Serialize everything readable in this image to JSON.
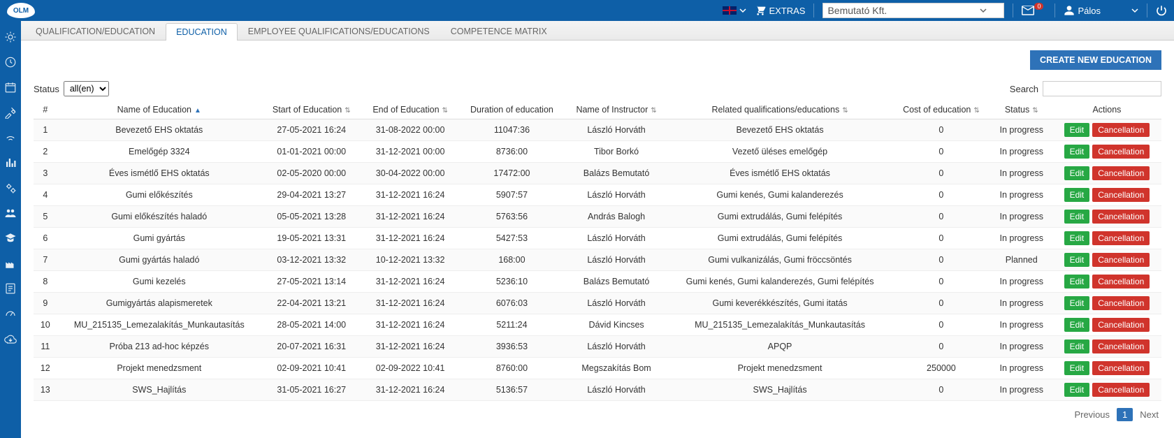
{
  "colors": {
    "primary_blue": "#0e5fa7",
    "green": "#27a844",
    "red": "#d0342c",
    "btn_blue": "#2e72b8"
  },
  "header": {
    "logo_text": "OLM",
    "extras_label": "EXTRAS",
    "company_name": "Bemutató Kft.",
    "mail_badge": "0",
    "user_name": "Pálos"
  },
  "tabs": {
    "items": [
      {
        "label": "QUALIFICATION/EDUCATION",
        "active": false
      },
      {
        "label": "EDUCATION",
        "active": true
      },
      {
        "label": "EMPLOYEE QUALIFICATIONS/EDUCATIONS",
        "active": false
      },
      {
        "label": "COMPETENCE MATRIX",
        "active": false
      }
    ]
  },
  "buttons": {
    "create_new": "CREATE NEW EDUCATION",
    "edit": "Edit",
    "cancel": "Cancellation"
  },
  "filter": {
    "status_label": "Status",
    "status_value": "all(en)"
  },
  "search": {
    "label": "Search",
    "value": ""
  },
  "table": {
    "columns": [
      {
        "key": "idx",
        "label": "#"
      },
      {
        "key": "name",
        "label": "Name of Education",
        "sort": "asc"
      },
      {
        "key": "start",
        "label": "Start of Education",
        "sort": "both"
      },
      {
        "key": "end",
        "label": "End of Education",
        "sort": "both"
      },
      {
        "key": "duration",
        "label": "Duration of education"
      },
      {
        "key": "instructor",
        "label": "Name of Instructor",
        "sort": "both"
      },
      {
        "key": "related",
        "label": "Related qualifications/educations",
        "sort": "both"
      },
      {
        "key": "cost",
        "label": "Cost of education",
        "sort": "both"
      },
      {
        "key": "status",
        "label": "Status",
        "sort": "both"
      },
      {
        "key": "actions",
        "label": "Actions"
      }
    ],
    "rows": [
      {
        "idx": "1",
        "name": "Bevezető EHS oktatás",
        "start": "27-05-2021 16:24",
        "end": "31-08-2022 00:00",
        "duration": "11047:36",
        "instructor": "László Horváth",
        "related": "Bevezető EHS oktatás",
        "cost": "0",
        "status": "In progress"
      },
      {
        "idx": "2",
        "name": "Emelőgép 3324",
        "start": "01-01-2021 00:00",
        "end": "31-12-2021 00:00",
        "duration": "8736:00",
        "instructor": "Tibor Borkó",
        "related": "Vezető üléses emelőgép",
        "cost": "0",
        "status": "In progress"
      },
      {
        "idx": "3",
        "name": "Éves ismétlő EHS oktatás",
        "start": "02-05-2020 00:00",
        "end": "30-04-2022 00:00",
        "duration": "17472:00",
        "instructor": "Balázs Bemutató",
        "related": "Éves ismétlő EHS oktatás",
        "cost": "0",
        "status": "In progress"
      },
      {
        "idx": "4",
        "name": "Gumi előkészítés",
        "start": "29-04-2021 13:27",
        "end": "31-12-2021 16:24",
        "duration": "5907:57",
        "instructor": "László Horváth",
        "related": "Gumi kenés, Gumi kalanderezés",
        "cost": "0",
        "status": "In progress"
      },
      {
        "idx": "5",
        "name": "Gumi előkészítés haladó",
        "start": "05-05-2021 13:28",
        "end": "31-12-2021 16:24",
        "duration": "5763:56",
        "instructor": "András Balogh",
        "related": "Gumi extrudálás, Gumi felépítés",
        "cost": "0",
        "status": "In progress"
      },
      {
        "idx": "6",
        "name": "Gumi gyártás",
        "start": "19-05-2021 13:31",
        "end": "31-12-2021 16:24",
        "duration": "5427:53",
        "instructor": "László Horváth",
        "related": "Gumi extrudálás, Gumi felépítés",
        "cost": "0",
        "status": "In progress"
      },
      {
        "idx": "7",
        "name": "Gumi gyártás haladó",
        "start": "03-12-2021 13:32",
        "end": "10-12-2021 13:32",
        "duration": "168:00",
        "instructor": "László Horváth",
        "related": "Gumi vulkanizálás, Gumi fröccsöntés",
        "cost": "0",
        "status": "Planned"
      },
      {
        "idx": "8",
        "name": "Gumi kezelés",
        "start": "27-05-2021 13:14",
        "end": "31-12-2021 16:24",
        "duration": "5236:10",
        "instructor": "Balázs Bemutató",
        "related": "Gumi kenés, Gumi kalanderezés, Gumi felépítés",
        "cost": "0",
        "status": "In progress"
      },
      {
        "idx": "9",
        "name": "Gumigyártás alapismeretek",
        "start": "22-04-2021 13:21",
        "end": "31-12-2021 16:24",
        "duration": "6076:03",
        "instructor": "László Horváth",
        "related": "Gumi keverékkészítés, Gumi itatás",
        "cost": "0",
        "status": "In progress"
      },
      {
        "idx": "10",
        "name": "MU_215135_Lemezalakítás_Munkautasítás",
        "start": "28-05-2021 14:00",
        "end": "31-12-2021 16:24",
        "duration": "5211:24",
        "instructor": "Dávid Kincses",
        "related": "MU_215135_Lemezalakítás_Munkautasítás",
        "cost": "0",
        "status": "In progress"
      },
      {
        "idx": "11",
        "name": "Próba 213 ad-hoc képzés",
        "start": "20-07-2021 16:31",
        "end": "31-12-2021 16:24",
        "duration": "3936:53",
        "instructor": "László Horváth",
        "related": "APQP",
        "cost": "0",
        "status": "In progress"
      },
      {
        "idx": "12",
        "name": "Projekt menedzsment",
        "start": "02-09-2021 10:41",
        "end": "02-09-2022 10:41",
        "duration": "8760:00",
        "instructor": "Megszakítás Bom",
        "related": "Projekt menedzsment",
        "cost": "250000",
        "status": "In progress"
      },
      {
        "idx": "13",
        "name": "SWS_Hajlítás",
        "start": "31-05-2021 16:27",
        "end": "31-12-2021 16:24",
        "duration": "5136:57",
        "instructor": "László Horváth",
        "related": "SWS_Hajlítás",
        "cost": "0",
        "status": "In progress"
      }
    ]
  },
  "pager": {
    "previous": "Previous",
    "next": "Next",
    "page": "1"
  }
}
